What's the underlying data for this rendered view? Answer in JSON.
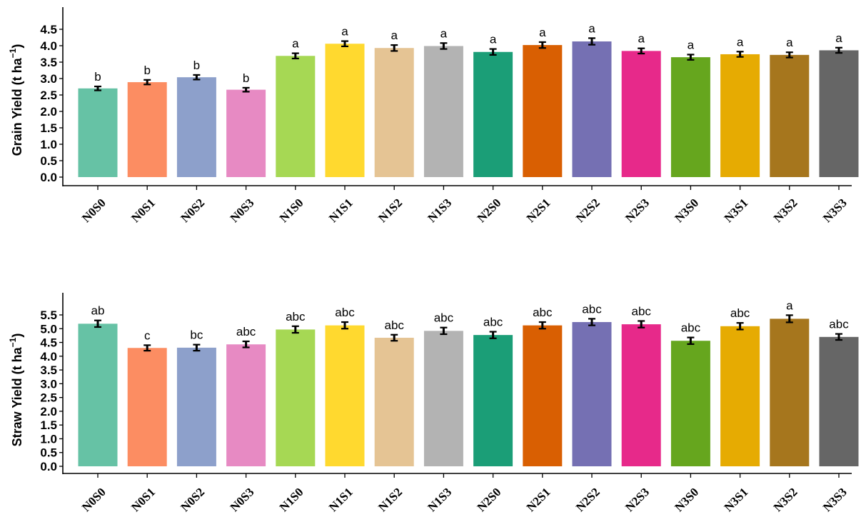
{
  "chart_data": [
    {
      "type": "bar",
      "ylabel": "Grain Yield (t ha",
      "ylabel_sup": "−1",
      "ylabel_close": ")",
      "ylim": [
        0,
        4.5
      ],
      "yticks": [
        "0.0",
        "0.5",
        "1.0",
        "1.5",
        "2.0",
        "2.5",
        "3.0",
        "3.5",
        "4.0",
        "4.5"
      ],
      "categories": [
        "N0S0",
        "N0S1",
        "N0S2",
        "N0S3",
        "N1S0",
        "N1S1",
        "N1S2",
        "N1S3",
        "N2S0",
        "N2S1",
        "N2S2",
        "N2S3",
        "N3S0",
        "N3S1",
        "N3S2",
        "N3S3"
      ],
      "values": [
        2.7,
        2.89,
        3.04,
        2.66,
        3.69,
        4.06,
        3.93,
        3.99,
        3.81,
        4.02,
        4.13,
        3.84,
        3.65,
        3.74,
        3.72,
        3.86
      ],
      "errors": [
        0.06,
        0.07,
        0.07,
        0.06,
        0.08,
        0.08,
        0.09,
        0.09,
        0.09,
        0.09,
        0.1,
        0.08,
        0.08,
        0.08,
        0.08,
        0.08
      ],
      "labels": [
        "b",
        "b",
        "b",
        "b",
        "a",
        "a",
        "a",
        "a",
        "a",
        "a",
        "a",
        "a",
        "a",
        "a",
        "a",
        "a"
      ],
      "grid": false,
      "legend": "none"
    },
    {
      "type": "bar",
      "ylabel": "Straw Yield (t ha",
      "ylabel_sup": "−1",
      "ylabel_close": ")",
      "ylim": [
        0,
        5.5
      ],
      "yticks": [
        "0.0",
        "0.5",
        "1.0",
        "1.5",
        "2.0",
        "2.5",
        "3.0",
        "3.5",
        "4.0",
        "4.5",
        "5.0",
        "5.5"
      ],
      "categories": [
        "N0S0",
        "N0S1",
        "N0S2",
        "N0S3",
        "N1S0",
        "N1S1",
        "N1S2",
        "N1S3",
        "N2S0",
        "N2S1",
        "N2S2",
        "N2S3",
        "N3S0",
        "N3S1",
        "N3S2",
        "N3S3"
      ],
      "values": [
        5.18,
        4.3,
        4.31,
        4.43,
        4.97,
        5.12,
        4.67,
        4.92,
        4.77,
        5.12,
        5.24,
        5.16,
        4.56,
        5.09,
        5.36,
        4.7
      ],
      "errors": [
        0.12,
        0.1,
        0.11,
        0.11,
        0.12,
        0.12,
        0.11,
        0.12,
        0.12,
        0.12,
        0.12,
        0.12,
        0.12,
        0.12,
        0.13,
        0.11
      ],
      "labels": [
        "ab",
        "c",
        "bc",
        "abc",
        "abc",
        "abc",
        "abc",
        "abc",
        "abc",
        "abc",
        "abc",
        "abc",
        "abc",
        "abc",
        "a",
        "abc"
      ],
      "grid": false,
      "legend": "none"
    }
  ],
  "colors": [
    "#66c2a5",
    "#fc8d62",
    "#8da0cb",
    "#e78ac3",
    "#a6d854",
    "#ffd92f",
    "#e5c494",
    "#b3b3b3",
    "#1b9e77",
    "#d95f02",
    "#7570b3",
    "#e7298a",
    "#66a61e",
    "#e6ab02",
    "#a6761d",
    "#666666"
  ]
}
